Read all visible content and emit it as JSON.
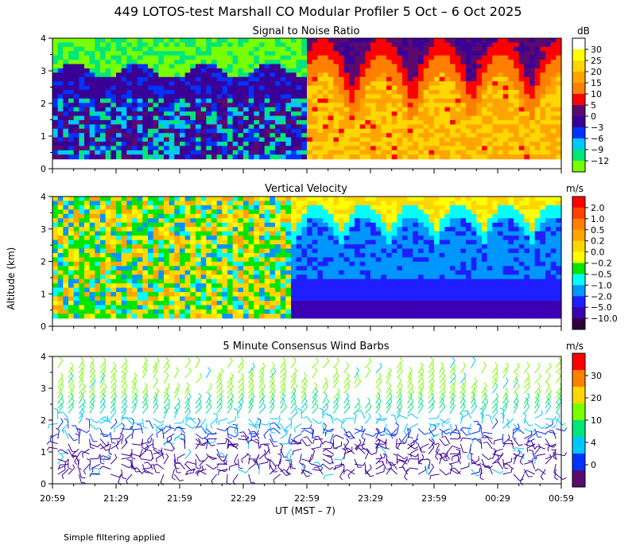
{
  "header": {
    "title": "449 LOTOS-test Marshall CO Modular Profiler  5 Oct –  6 Oct 2025"
  },
  "axes": {
    "ylabel": "Altitude (km)",
    "xlabel": "UT  (MST – 7)",
    "x_ticks": [
      "20:59",
      "21:29",
      "21:59",
      "22:29",
      "22:59",
      "23:29",
      "23:59",
      "00:29",
      "00:59"
    ],
    "y_ticks": [
      "0",
      "1",
      "2",
      "3",
      "4"
    ]
  },
  "footer": {
    "note": "Simple filtering applied"
  },
  "chart_data": [
    {
      "type": "heatmap",
      "title": "Signal to Noise Ratio",
      "unit": "dB",
      "ylim": [
        0,
        4
      ],
      "x_range": [
        "20:59",
        "00:59"
      ],
      "colorbar": {
        "labels": [
          "30",
          "25",
          "20",
          "15",
          "10",
          "5",
          "0",
          "−3",
          "−6",
          "−9",
          "−12"
        ],
        "colors": [
          "#ffffff",
          "#ffff00",
          "#ffd700",
          "#ffa500",
          "#ff7f00",
          "#ff0000",
          "#5a0a6e",
          "#3a0096",
          "#0032ff",
          "#00c8ff",
          "#00e678",
          "#78ff00"
        ]
      }
    },
    {
      "type": "heatmap",
      "title": "Vertical Velocity",
      "unit": "m/s",
      "ylim": [
        0,
        4
      ],
      "x_range": [
        "20:59",
        "00:59"
      ],
      "colorbar": {
        "labels": [
          "2.0",
          "1.0",
          "0.5",
          "0.2",
          "0.0",
          "−0.2",
          "−0.5",
          "−1.0",
          "−2.0",
          "−5.0",
          "−10.0"
        ],
        "colors": [
          "#ff0000",
          "#ff4000",
          "#ff7f00",
          "#ffa500",
          "#ffd700",
          "#ffff00",
          "#00e600",
          "#00ffff",
          "#0096ff",
          "#1e1eff",
          "#3c00b4",
          "#30003c"
        ]
      }
    },
    {
      "type": "scatter",
      "title": "5 Minute Consensus Wind Barbs",
      "unit": "m/s",
      "ylim": [
        0,
        4
      ],
      "x_range": [
        "20:59",
        "00:59"
      ],
      "colorbar": {
        "labels": [
          "30",
          "20",
          "10",
          "4",
          "0"
        ],
        "colors": [
          "#ff0000",
          "#ff7f00",
          "#ffd700",
          "#78ff00",
          "#00e678",
          "#00c8ff",
          "#0032ff",
          "#5a0a6e"
        ]
      }
    }
  ]
}
